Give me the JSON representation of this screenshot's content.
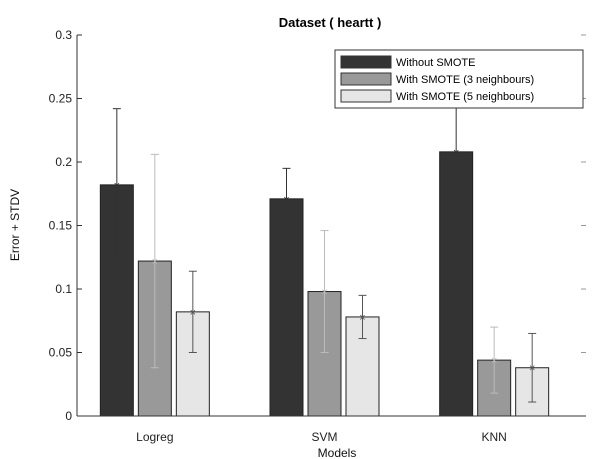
{
  "chart_data": {
    "type": "bar",
    "title": "Dataset ( heartt )",
    "xlabel": "Models",
    "ylabel": "Error + STDV",
    "ylim": [
      0,
      0.3
    ],
    "yticks": [
      "0",
      "0.05",
      "0.1",
      "0.15",
      "0.2",
      "0.25",
      "0.3"
    ],
    "categories": [
      "Logreg",
      "SVM",
      "KNN"
    ],
    "legend_position": "top-right",
    "series": [
      {
        "name": "Without SMOTE",
        "color": "#333333",
        "error_bar_color": "#333333",
        "values": [
          0.182,
          0.171,
          0.208
        ],
        "errors": [
          0.06,
          0.024,
          0.055
        ]
      },
      {
        "name": "With SMOTE (3 neighbours)",
        "color": "#999999",
        "error_bar_color": "#bbbbbb",
        "values": [
          0.122,
          0.098,
          0.044
        ],
        "errors": [
          0.084,
          0.048,
          0.026
        ]
      },
      {
        "name": "With SMOTE (5 neighbours)",
        "color": "#e6e6e6",
        "error_bar_color": "#555555",
        "values": [
          0.082,
          0.078,
          0.038
        ],
        "errors": [
          0.032,
          0.017,
          0.027
        ]
      }
    ]
  }
}
